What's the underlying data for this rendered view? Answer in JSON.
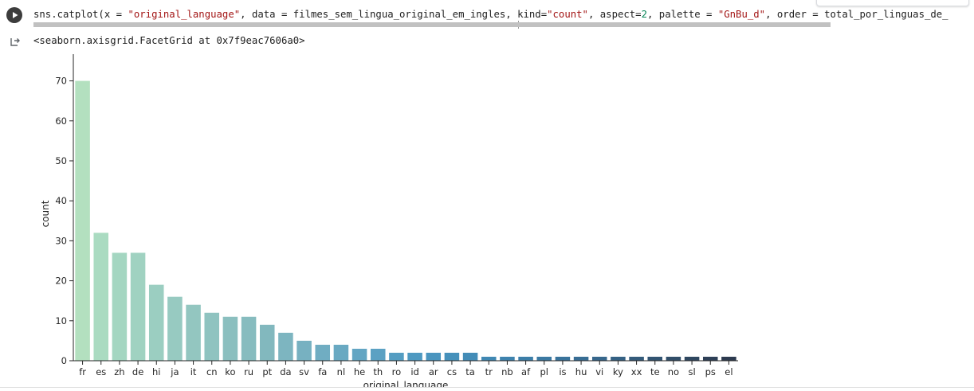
{
  "code": {
    "fn": "sns.catplot(",
    "p1": "x = ",
    "s1": "\"original_language\"",
    "p2": ", data = filmes_sem_lingua_original_em_ingles, kind=",
    "s2": "\"count\"",
    "p3": ", aspect=",
    "n1": "2",
    "p4": ", palette = ",
    "s3": "\"GnBu_d\"",
    "p5": ", order = total_por_linguas_de_"
  },
  "output": {
    "repr": "<seaborn.axisgrid.FacetGrid at 0x7f9eac7606a0>"
  },
  "icons": {
    "run": "play-icon",
    "output": "output-redirect-icon"
  },
  "chart_data": {
    "type": "bar",
    "categories": [
      "fr",
      "es",
      "zh",
      "de",
      "hi",
      "ja",
      "it",
      "cn",
      "ko",
      "ru",
      "pt",
      "da",
      "sv",
      "fa",
      "nl",
      "he",
      "th",
      "ro",
      "id",
      "ar",
      "cs",
      "ta",
      "tr",
      "nb",
      "af",
      "pl",
      "is",
      "hu",
      "vi",
      "ky",
      "xx",
      "te",
      "no",
      "sl",
      "ps",
      "el"
    ],
    "values": [
      70,
      32,
      27,
      27,
      19,
      16,
      14,
      12,
      11,
      11,
      9,
      7,
      5,
      4,
      4,
      3,
      3,
      2,
      2,
      2,
      2,
      2,
      1,
      1,
      1,
      1,
      1,
      1,
      1,
      1,
      1,
      1,
      1,
      1,
      1,
      1
    ],
    "colors": [
      "#b3e0bf",
      "#aadbc1",
      "#a4d6c1",
      "#a0d2c1",
      "#9bcec1",
      "#97cac1",
      "#93c6c0",
      "#8fc3c0",
      "#8bbfbf",
      "#87bcbf",
      "#82b8be",
      "#7db5c0",
      "#77b1c1",
      "#70adc2",
      "#69a9c2",
      "#62a5c3",
      "#5ba1c3",
      "#549dc2",
      "#4e99c1",
      "#4a95bf",
      "#4691bb",
      "#438cb7",
      "#4088b3",
      "#3e83ae",
      "#3c7ea8",
      "#3b79a2",
      "#39739b",
      "#386d94",
      "#37678c",
      "#356184",
      "#345b7b",
      "#325472",
      "#314e69",
      "#2f4760",
      "#2e4057",
      "#2d3a4f"
    ],
    "xlabel": "original_language",
    "ylabel": "count",
    "yticks": [
      0,
      10,
      20,
      30,
      40,
      50,
      60,
      70
    ],
    "ylim": [
      0,
      73.5
    ],
    "grid": false,
    "legend": "none"
  }
}
